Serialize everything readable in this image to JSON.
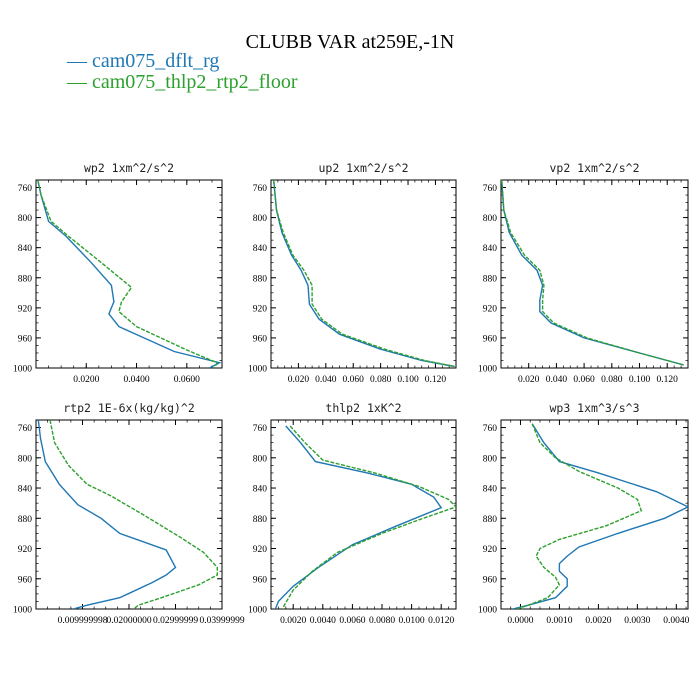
{
  "title": "CLUBB VAR at259E,-1N",
  "legend": [
    {
      "label": "— cam075_dflt_rg",
      "color": "#1f77b4"
    },
    {
      "label": "— cam075_thlp2_rtp2_floor",
      "color": "#2ca02c"
    }
  ],
  "series_colors": {
    "dflt": "#1f77b4",
    "floor": "#2ca02c"
  },
  "chart_data": [
    {
      "type": "line",
      "title": "wp2  1xm^2/s^2",
      "xlim": [
        0.0,
        0.074
      ],
      "ylim": [
        1000,
        750
      ],
      "xticks": [
        0.02,
        0.04,
        0.06
      ],
      "xtick_labels": [
        "0.0200",
        "0.0400",
        "0.0600"
      ],
      "yticks": [
        760,
        800,
        840,
        880,
        920,
        960,
        1000
      ],
      "series": [
        {
          "name": "cam075_dflt_rg",
          "style": "solid",
          "points": [
            [
              0.0007,
              750
            ],
            [
              0.002,
              770
            ],
            [
              0.005,
              805
            ],
            [
              0.012,
              825
            ],
            [
              0.022,
              860
            ],
            [
              0.03,
              890
            ],
            [
              0.031,
              912
            ],
            [
              0.029,
              928
            ],
            [
              0.033,
              945
            ],
            [
              0.055,
              978
            ],
            [
              0.073,
              993
            ],
            [
              0.069,
              1000
            ]
          ]
        },
        {
          "name": "cam075_thlp2_rtp2_floor",
          "style": "dashed",
          "points": [
            [
              0.0007,
              750
            ],
            [
              0.002,
              770
            ],
            [
              0.006,
              805
            ],
            [
              0.013,
              825
            ],
            [
              0.026,
              860
            ],
            [
              0.038,
              893
            ],
            [
              0.034,
              912
            ],
            [
              0.033,
              925
            ],
            [
              0.04,
              945
            ],
            [
              0.06,
              976
            ],
            [
              0.072,
              993
            ],
            [
              0.071,
              1000
            ]
          ]
        }
      ]
    },
    {
      "type": "line",
      "title": "up2  1xm^2/s^2",
      "xlim": [
        0.0,
        0.135
      ],
      "ylim": [
        1000,
        750
      ],
      "xticks": [
        0.02,
        0.04,
        0.06,
        0.08,
        0.1,
        0.12
      ],
      "xtick_labels": [
        "0.020",
        "0.040",
        "0.060",
        "0.080",
        "0.100",
        "0.120"
      ],
      "yticks": [
        760,
        800,
        840,
        880,
        920,
        960,
        1000
      ],
      "series": [
        {
          "name": "cam075_dflt_rg",
          "style": "solid",
          "points": [
            [
              0.002,
              750
            ],
            [
              0.004,
              790
            ],
            [
              0.008,
              820
            ],
            [
              0.015,
              850
            ],
            [
              0.022,
              870
            ],
            [
              0.027,
              890
            ],
            [
              0.028,
              915
            ],
            [
              0.035,
              935
            ],
            [
              0.05,
              955
            ],
            [
              0.08,
              975
            ],
            [
              0.11,
              990
            ],
            [
              0.134,
              998
            ]
          ]
        },
        {
          "name": "cam075_thlp2_rtp2_floor",
          "style": "dashed",
          "points": [
            [
              0.002,
              750
            ],
            [
              0.004,
              790
            ],
            [
              0.009,
              820
            ],
            [
              0.016,
              850
            ],
            [
              0.024,
              870
            ],
            [
              0.03,
              890
            ],
            [
              0.03,
              915
            ],
            [
              0.037,
              935
            ],
            [
              0.052,
              955
            ],
            [
              0.083,
              975
            ],
            [
              0.112,
              990
            ],
            [
              0.134,
              998
            ]
          ]
        }
      ]
    },
    {
      "type": "line",
      "title": "vp2  1xm^2/s^2",
      "xlim": [
        0.0,
        0.135
      ],
      "ylim": [
        1000,
        750
      ],
      "xticks": [
        0.02,
        0.04,
        0.06,
        0.08,
        0.1,
        0.12
      ],
      "xtick_labels": [
        "0.020",
        "0.040",
        "0.060",
        "0.080",
        "0.100",
        "0.120"
      ],
      "yticks": [
        760,
        800,
        840,
        880,
        920,
        960,
        1000
      ],
      "series": [
        {
          "name": "cam075_dflt_rg",
          "style": "solid",
          "points": [
            [
              0.0005,
              750
            ],
            [
              0.002,
              790
            ],
            [
              0.006,
              820
            ],
            [
              0.015,
              850
            ],
            [
              0.026,
              870
            ],
            [
              0.03,
              890
            ],
            [
              0.028,
              910
            ],
            [
              0.028,
              925
            ],
            [
              0.036,
              940
            ],
            [
              0.06,
              960
            ],
            [
              0.1,
              980
            ],
            [
              0.132,
              996
            ]
          ]
        },
        {
          "name": "cam075_thlp2_rtp2_floor",
          "style": "dashed",
          "points": [
            [
              0.0005,
              750
            ],
            [
              0.002,
              790
            ],
            [
              0.007,
              820
            ],
            [
              0.017,
              850
            ],
            [
              0.028,
              870
            ],
            [
              0.031,
              890
            ],
            [
              0.03,
              910
            ],
            [
              0.03,
              925
            ],
            [
              0.038,
              940
            ],
            [
              0.062,
              960
            ],
            [
              0.1,
              980
            ],
            [
              0.132,
              996
            ]
          ]
        }
      ]
    },
    {
      "type": "line",
      "title": "rtp2  1E-6x(kg/kg)^2",
      "xlim": [
        0.0,
        0.04
      ],
      "ylim": [
        1000,
        750
      ],
      "xticks": [
        0.01,
        0.02,
        0.03,
        0.04
      ],
      "xtick_labels": [
        "0.009999998",
        "0.02000000",
        "0.02999999",
        "0.03999999"
      ],
      "yticks": [
        760,
        800,
        840,
        880,
        920,
        960,
        1000
      ],
      "series": [
        {
          "name": "cam075_dflt_rg",
          "style": "solid",
          "points": [
            [
              0.0005,
              750
            ],
            [
              0.001,
              775
            ],
            [
              0.002,
              805
            ],
            [
              0.005,
              835
            ],
            [
              0.009,
              862
            ],
            [
              0.014,
              880
            ],
            [
              0.018,
              900
            ],
            [
              0.028,
              922
            ],
            [
              0.03,
              945
            ],
            [
              0.028,
              955
            ],
            [
              0.025,
              965
            ],
            [
              0.018,
              985
            ],
            [
              0.011,
              995
            ],
            [
              0.008,
              1000
            ]
          ]
        },
        {
          "name": "cam075_thlp2_rtp2_floor",
          "style": "dashed",
          "points": [
            [
              0.003,
              750
            ],
            [
              0.004,
              780
            ],
            [
              0.007,
              810
            ],
            [
              0.011,
              835
            ],
            [
              0.016,
              850
            ],
            [
              0.023,
              875
            ],
            [
              0.031,
              905
            ],
            [
              0.036,
              925
            ],
            [
              0.039,
              945
            ],
            [
              0.039,
              955
            ],
            [
              0.035,
              968
            ],
            [
              0.027,
              985
            ],
            [
              0.022,
              995
            ],
            [
              0.021,
              1000
            ]
          ]
        }
      ]
    },
    {
      "type": "line",
      "title": "thlp2  1xK^2",
      "xlim": [
        0.0005,
        0.013
      ],
      "ylim": [
        1000,
        750
      ],
      "xticks": [
        0.002,
        0.004,
        0.006,
        0.008,
        0.01,
        0.012
      ],
      "xtick_labels": [
        "0.0020",
        "0.0040",
        "0.0060",
        "0.0080",
        "0.0100",
        "0.0120"
      ],
      "yticks": [
        760,
        800,
        840,
        880,
        920,
        960,
        1000
      ],
      "series": [
        {
          "name": "cam075_dflt_rg",
          "style": "solid",
          "points": [
            [
              0.0015,
              758
            ],
            [
              0.0025,
              780
            ],
            [
              0.0035,
              805
            ],
            [
              0.007,
              820
            ],
            [
              0.01,
              835
            ],
            [
              0.0115,
              852
            ],
            [
              0.012,
              866
            ],
            [
              0.009,
              890
            ],
            [
              0.006,
              915
            ],
            [
              0.0037,
              945
            ],
            [
              0.002,
              970
            ],
            [
              0.001,
              990
            ],
            [
              0.0008,
              1000
            ]
          ]
        },
        {
          "name": "cam075_thlp2_rtp2_floor",
          "style": "dashed",
          "points": [
            [
              0.0018,
              758
            ],
            [
              0.0028,
              780
            ],
            [
              0.004,
              803
            ],
            [
              0.0075,
              820
            ],
            [
              0.0105,
              838
            ],
            [
              0.0125,
              855
            ],
            [
              0.013,
              865
            ],
            [
              0.0105,
              882
            ],
            [
              0.008,
              900
            ],
            [
              0.005,
              925
            ],
            [
              0.0033,
              950
            ],
            [
              0.002,
              975
            ],
            [
              0.0014,
              995
            ],
            [
              0.0013,
              1000
            ]
          ]
        }
      ]
    },
    {
      "type": "line",
      "title": "wp3  1xm^3/s^3",
      "xlim": [
        -0.0005,
        0.0043
      ],
      "ylim": [
        1000,
        750
      ],
      "xticks": [
        0.0,
        0.001,
        0.002,
        0.003,
        0.004
      ],
      "xtick_labels": [
        "0.0000",
        "0.0010",
        "0.0020",
        "0.0030",
        "0.0040"
      ],
      "yticks": [
        760,
        800,
        840,
        880,
        920,
        960,
        1000
      ],
      "series": [
        {
          "name": "cam075_dflt_rg",
          "style": "solid",
          "points": [
            [
              0.0003,
              755
            ],
            [
              0.0006,
              780
            ],
            [
              0.001,
              805
            ],
            [
              0.002,
              820
            ],
            [
              0.0035,
              845
            ],
            [
              0.0043,
              865
            ],
            [
              0.0037,
              880
            ],
            [
              0.0025,
              900
            ],
            [
              0.0015,
              918
            ],
            [
              0.0012,
              930
            ],
            [
              0.001,
              940
            ],
            [
              0.001,
              950
            ],
            [
              0.0012,
              960
            ],
            [
              0.0012,
              970
            ],
            [
              0.0009,
              985
            ],
            [
              0.0002,
              995
            ],
            [
              -0.0002,
              1000
            ]
          ]
        },
        {
          "name": "cam075_thlp2_rtp2_floor",
          "style": "dashed",
          "points": [
            [
              0.0003,
              755
            ],
            [
              0.0005,
              780
            ],
            [
              0.0009,
              800
            ],
            [
              0.0015,
              818
            ],
            [
              0.0025,
              840
            ],
            [
              0.003,
              855
            ],
            [
              0.0031,
              870
            ],
            [
              0.0022,
              890
            ],
            [
              0.001,
              908
            ],
            [
              0.0005,
              920
            ],
            [
              0.0004,
              930
            ],
            [
              0.0006,
              945
            ],
            [
              0.0009,
              958
            ],
            [
              0.001,
              968
            ],
            [
              0.0007,
              985
            ],
            [
              0.0002,
              995
            ],
            [
              -0.0001,
              1000
            ]
          ]
        }
      ]
    }
  ]
}
